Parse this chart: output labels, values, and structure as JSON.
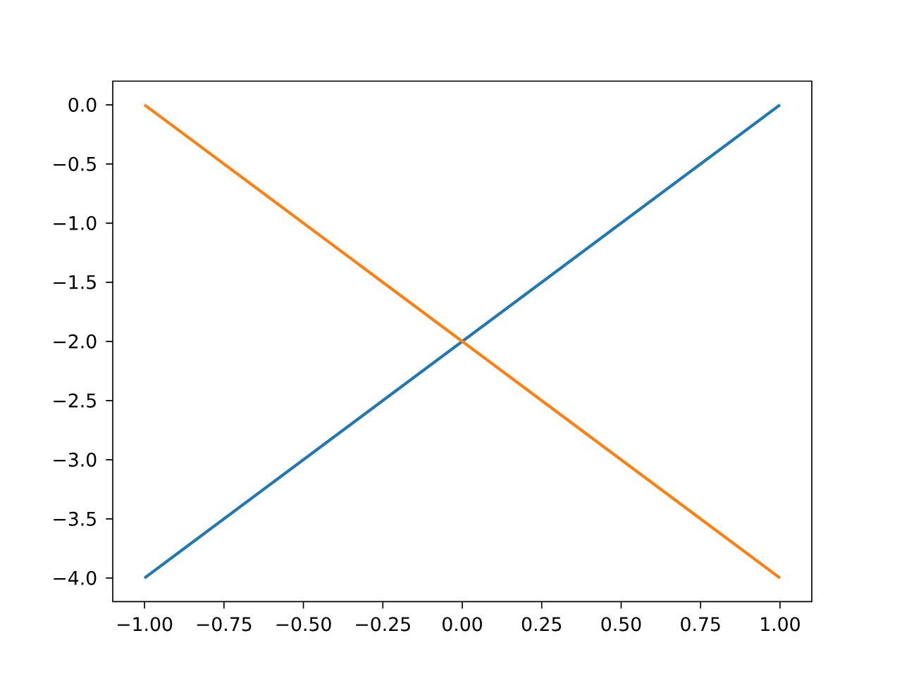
{
  "chart_data": {
    "type": "line",
    "x": [
      -1,
      1
    ],
    "series": [
      {
        "color": "#1f77b4",
        "values": [
          -4,
          0
        ]
      },
      {
        "color": "#ff7f0e",
        "values": [
          0,
          -4
        ]
      }
    ],
    "xlim": [
      -1.1,
      1.1
    ],
    "ylim": [
      -4.2,
      0.2
    ],
    "xticks": [
      {
        "value": -1,
        "label": "−1.00"
      },
      {
        "value": -0.75,
        "label": "−0.75"
      },
      {
        "value": -0.5,
        "label": "−0.50"
      },
      {
        "value": -0.25,
        "label": "−0.25"
      },
      {
        "value": 0,
        "label": "0.00"
      },
      {
        "value": 0.25,
        "label": "0.25"
      },
      {
        "value": 0.5,
        "label": "0.50"
      },
      {
        "value": 0.75,
        "label": "0.75"
      },
      {
        "value": 1,
        "label": "1.00"
      }
    ],
    "yticks": [
      {
        "value": 0,
        "label": "0.0"
      },
      {
        "value": -0.5,
        "label": "−0.5"
      },
      {
        "value": -1,
        "label": "−1.0"
      },
      {
        "value": -1.5,
        "label": "−1.5"
      },
      {
        "value": -2,
        "label": "−2.0"
      },
      {
        "value": -2.5,
        "label": "−2.5"
      },
      {
        "value": -3,
        "label": "−3.0"
      },
      {
        "value": -3.5,
        "label": "−3.5"
      },
      {
        "value": -4,
        "label": "−4.0"
      }
    ],
    "marker": "none",
    "line_style": "solid"
  }
}
